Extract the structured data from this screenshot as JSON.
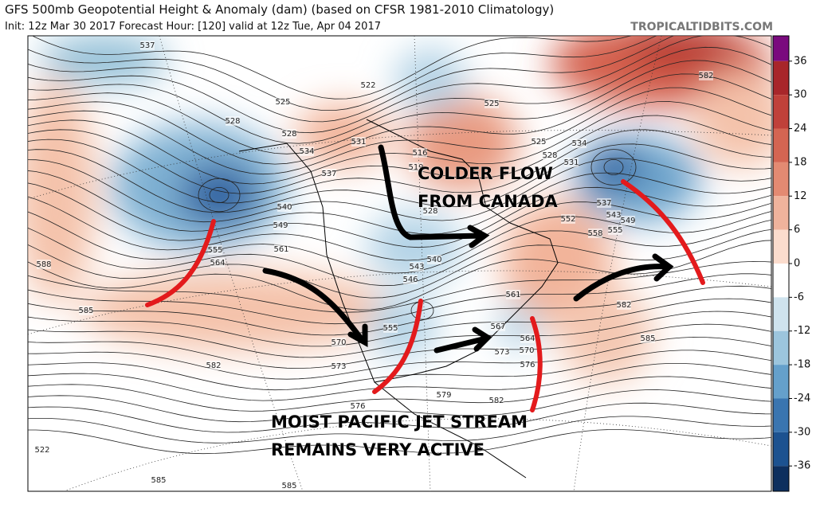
{
  "header": {
    "title": "GFS 500mb Geopotential Height & Anomaly (dam) (based on CFSR 1981-2010 Climatology)",
    "subtitle": "Init: 12z Mar 30 2017   Forecast Hour: [120]   valid at 12z Tue, Apr 04 2017",
    "source": "TROPICALTIDBITS.COM"
  },
  "colorbar": {
    "ticks": [
      36,
      30,
      24,
      18,
      12,
      6,
      0,
      -6,
      -12,
      -18,
      -24,
      -30,
      -36
    ],
    "colors": [
      "#7a0a7e",
      "#a8262a",
      "#c0413a",
      "#d46552",
      "#e38a72",
      "#efb39c",
      "#fbdccd",
      "#ffffff",
      "#cfe3ee",
      "#9cc5dd",
      "#65a0cb",
      "#3a75b0",
      "#1c5290",
      "#0d2f5e"
    ]
  },
  "contour_labels": [
    "537",
    "528",
    "522",
    "525",
    "528",
    "534",
    "537",
    "531",
    "516",
    "519",
    "528",
    "540",
    "549",
    "561",
    "564",
    "555",
    "588",
    "585",
    "582",
    "573",
    "576",
    "570",
    "555",
    "546",
    "543",
    "540",
    "579",
    "582",
    "567",
    "573",
    "564",
    "570",
    "576",
    "561",
    "525",
    "528",
    "531",
    "534",
    "537",
    "543",
    "549",
    "555",
    "558",
    "552",
    "582",
    "582",
    "585",
    "585",
    "585",
    "522",
    "525"
  ],
  "annotations": [
    "COLDER FLOW",
    "FROM CANADA",
    "MOIST PACIFIC JET STREAM",
    "REMAINS VERY ACTIVE"
  ]
}
